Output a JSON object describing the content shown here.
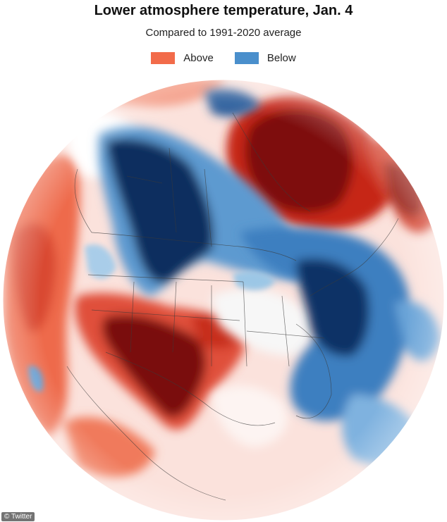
{
  "header": {
    "title": "Lower atmosphere temperature, Jan. 4",
    "subtitle": "Compared to 1991-2020 average"
  },
  "legend": {
    "items": [
      {
        "label": "Above",
        "color": "#f26b4a"
      },
      {
        "label": "Below",
        "color": "#4a8fcc"
      }
    ]
  },
  "map": {
    "projection": "orthographic",
    "region": "North America",
    "colors": {
      "warm_strong": "#7a0e08",
      "warm": "#c92a1a",
      "warm_light": "#f6a58f",
      "neutral": "#fbe6e0",
      "cool_light": "#9cc7e6",
      "cool": "#2f6fb5",
      "cool_strong": "#0b2a5a"
    }
  },
  "credit": "© Twitter"
}
